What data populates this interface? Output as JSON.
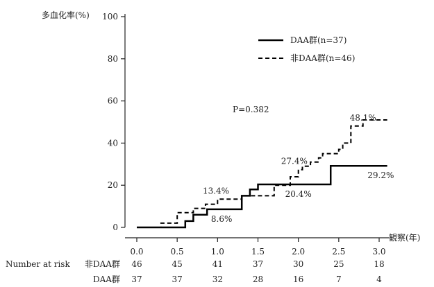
{
  "chart_data": {
    "type": "line",
    "ylabel": "多血化率(%)",
    "xlabel": "観察(年)",
    "xlim": [
      0,
      3.3
    ],
    "ylim": [
      0,
      100
    ],
    "x_ticks": [
      "0.0",
      "0.5",
      "1.0",
      "1.5",
      "2.0",
      "2.5",
      "3.0"
    ],
    "y_ticks": [
      "0",
      "20",
      "40",
      "60",
      "80",
      "100"
    ],
    "p_value": "P=0.382",
    "series": [
      {
        "name": "DAA群(n=37)",
        "style": "solid",
        "x": [
          0,
          0.6,
          0.6,
          0.7,
          0.7,
          0.87,
          0.87,
          1.05,
          1.05,
          1.3,
          1.3,
          1.4,
          1.4,
          1.5,
          1.5,
          1.9,
          1.9,
          2.4,
          2.4,
          3.1
        ],
        "y": [
          0,
          0,
          3,
          3,
          6,
          6,
          8.6,
          8.6,
          8.6,
          8.6,
          15,
          15,
          18,
          18,
          20.4,
          20.4,
          20.4,
          20.4,
          29.2,
          29.2
        ]
      },
      {
        "name": "非DAA群(n=46)",
        "style": "dashed",
        "x": [
          0,
          0.3,
          0.3,
          0.5,
          0.5,
          0.7,
          0.7,
          0.85,
          0.85,
          1.0,
          1.0,
          1.3,
          1.3,
          1.5,
          1.5,
          1.7,
          1.7,
          1.9,
          1.9,
          2.0,
          2.0,
          2.05,
          2.05,
          2.15,
          2.15,
          2.25,
          2.25,
          2.3,
          2.3,
          2.5,
          2.5,
          2.55,
          2.55,
          2.65,
          2.65,
          2.8,
          2.8,
          2.95,
          2.95,
          3.1
        ],
        "y": [
          0,
          0,
          2,
          2,
          7,
          7,
          9,
          9,
          11,
          11,
          13.4,
          13.4,
          15,
          15,
          15,
          15,
          20,
          20,
          24,
          24,
          27.4,
          27.4,
          29,
          29,
          31,
          31,
          33,
          33,
          35,
          35,
          37,
          37,
          40,
          40,
          48.1,
          48.1,
          51,
          51,
          51,
          51
        ]
      }
    ],
    "annotations": [
      {
        "text": "48.1%",
        "x": 2.8,
        "y": 48.1,
        "pos": "above"
      },
      {
        "text": "27.4%",
        "x": 1.95,
        "y": 27.4,
        "pos": "above"
      },
      {
        "text": "13.4%",
        "x": 0.98,
        "y": 13.4,
        "pos": "above"
      },
      {
        "text": "29.2%",
        "x": 3.02,
        "y": 29.2,
        "pos": "below"
      },
      {
        "text": "20.4%",
        "x": 2.0,
        "y": 20.4,
        "pos": "below"
      },
      {
        "text": "8.6%",
        "x": 1.05,
        "y": 8.6,
        "pos": "below"
      }
    ],
    "risk_table": {
      "title": "Number at risk",
      "rows": [
        {
          "label": "非DAA群",
          "values": [
            "46",
            "45",
            "41",
            "37",
            "30",
            "25",
            "18"
          ]
        },
        {
          "label": "DAA群",
          "values": [
            "37",
            "37",
            "32",
            "28",
            "16",
            "7",
            "4"
          ]
        }
      ]
    }
  }
}
